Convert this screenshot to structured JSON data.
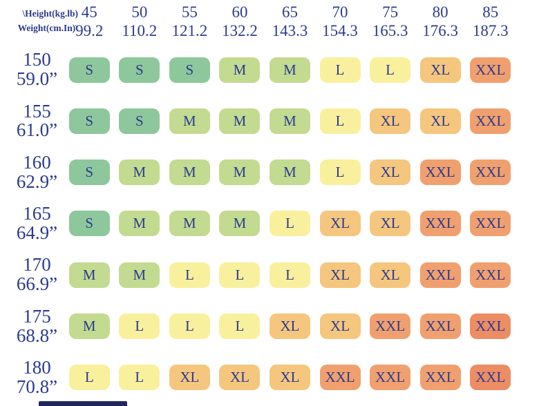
{
  "chart_data": {
    "type": "heatmap",
    "corner_labels": [
      "\\Height(kg.lb)",
      "Weight(cm.In)\\"
    ],
    "columns": [
      {
        "kg": "45",
        "lb": "99.2"
      },
      {
        "kg": "50",
        "lb": "110.2"
      },
      {
        "kg": "55",
        "lb": "121.2"
      },
      {
        "kg": "60",
        "lb": "132.2"
      },
      {
        "kg": "65",
        "lb": "143.3"
      },
      {
        "kg": "70",
        "lb": "154.3"
      },
      {
        "kg": "75",
        "lb": "165.3"
      },
      {
        "kg": "80",
        "lb": "176.3"
      },
      {
        "kg": "85",
        "lb": "187.3"
      }
    ],
    "rows": [
      {
        "cm": "150",
        "in": "59.0”",
        "sizes": [
          "S",
          "S",
          "S",
          "M",
          "M",
          "L",
          "L",
          "XL",
          "XXL"
        ]
      },
      {
        "cm": "155",
        "in": "61.0”",
        "sizes": [
          "S",
          "S",
          "M",
          "M",
          "M",
          "L",
          "XL",
          "XL",
          "XXL"
        ]
      },
      {
        "cm": "160",
        "in": "62.9”",
        "sizes": [
          "S",
          "M",
          "M",
          "M",
          "M",
          "L",
          "XL",
          "XXL",
          "XXL"
        ]
      },
      {
        "cm": "165",
        "in": "64.9”",
        "sizes": [
          "S",
          "M",
          "M",
          "M",
          "L",
          "XL",
          "XL",
          "XXL",
          "XXL"
        ]
      },
      {
        "cm": "170",
        "in": "66.9”",
        "sizes": [
          "M",
          "M",
          "L",
          "L",
          "L",
          "XL",
          "XL",
          "XXL",
          "XXL"
        ]
      },
      {
        "cm": "175",
        "in": "68.8”",
        "sizes": [
          "M",
          "L",
          "L",
          "L",
          "XL",
          "XL",
          "XXL",
          "XXL",
          "XXL"
        ]
      },
      {
        "cm": "180",
        "in": "70.8”",
        "sizes": [
          "L",
          "L",
          "XL",
          "XL",
          "XL",
          "XXL",
          "XXL",
          "XXL",
          "XXL"
        ]
      }
    ],
    "size_colors": {
      "S": "#8dc79b",
      "M": "#c2db90",
      "L": "#f9f09d",
      "XL": "#f5c67e",
      "XXL": "#f0a06e"
    },
    "cell_color_overrides": [
      {
        "row": 5,
        "col": 8,
        "color": "#ec8d64"
      },
      {
        "row": 6,
        "col": 8,
        "color": "#ec8d64"
      }
    ],
    "text_color": "#2b3a8f"
  },
  "footer": {
    "bar_color": "#20275e"
  }
}
